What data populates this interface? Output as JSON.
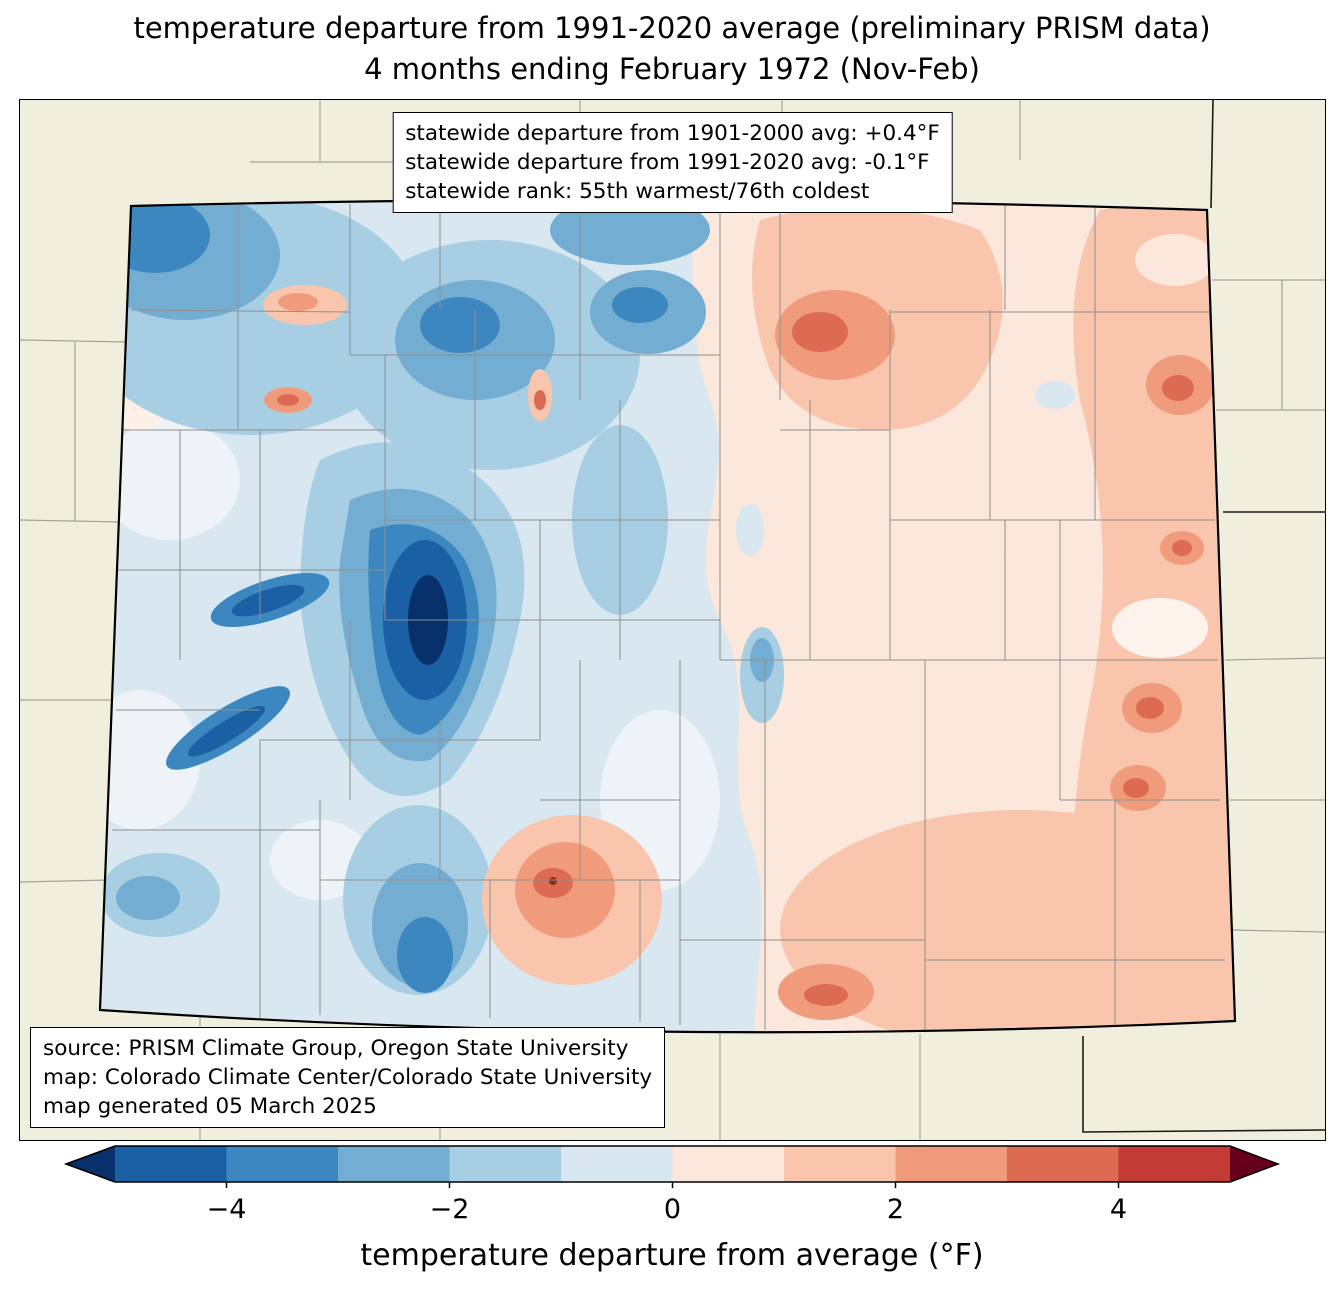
{
  "title": {
    "line1": "temperature departure from 1991-2020 average (preliminary PRISM data)",
    "line2": "4 months ending February 1972 (Nov-Feb)"
  },
  "stats_box": {
    "line1": "statewide departure from 1901-2000 avg: +0.4°F",
    "line2": "statewide departure from 1991-2020 avg: -0.1°F",
    "line3": "statewide rank: 55th warmest/76th coldest"
  },
  "source_box": {
    "line1": "source: PRISM Climate Group, Oregon State University",
    "line2": "map: Colorado Climate Center/Colorado State University",
    "line3": "map generated 05 March 2025"
  },
  "colorbar": {
    "label": "temperature departure from average (°F)",
    "range": [
      -5,
      5
    ],
    "ticks": [
      {
        "value": -4,
        "label": "−4"
      },
      {
        "value": -2,
        "label": "−2"
      },
      {
        "value": 0,
        "label": "0"
      },
      {
        "value": 2,
        "label": "2"
      },
      {
        "value": 4,
        "label": "4"
      }
    ],
    "segment_colors": [
      "#1b60a5",
      "#3c87c0",
      "#74add2",
      "#a8cee4",
      "#d9e7f1",
      "#fbe7db",
      "#f9c5ac",
      "#f09c7c",
      "#dd6a52",
      "#c23b36"
    ],
    "left_arrow_color": "#08306b",
    "right_arrow_color": "#67001f"
  }
}
